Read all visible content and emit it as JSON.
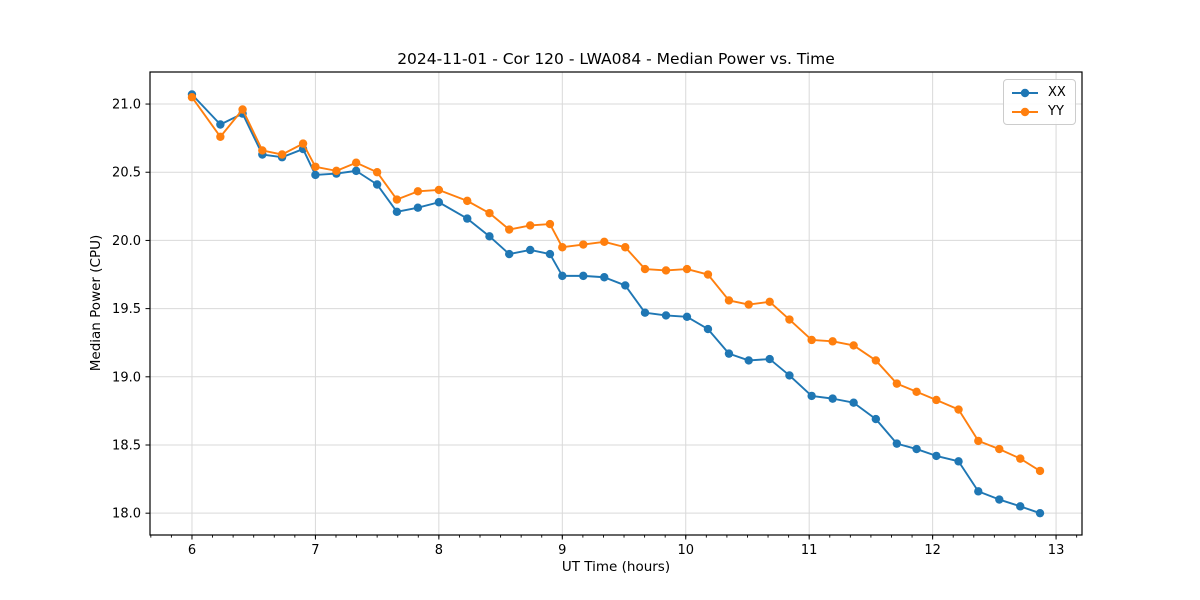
{
  "chart_data": {
    "type": "line",
    "title": "2024-11-01 - Cor 120 - LWA084 - Median Power vs. Time",
    "xlabel": "UT Time (hours)",
    "ylabel": "Median Power (CPU)",
    "xlim": [
      5.66,
      13.21
    ],
    "ylim": [
      17.84,
      21.235
    ],
    "xticks": [
      6,
      7,
      8,
      9,
      10,
      11,
      12,
      13
    ],
    "xtick_labels": [
      "6",
      "7",
      "8",
      "9",
      "10",
      "11",
      "12",
      "13"
    ],
    "yticks": [
      18.0,
      18.5,
      19.0,
      19.5,
      20.0,
      20.5,
      21.0
    ],
    "ytick_labels": [
      "18.0",
      "18.5",
      "19.0",
      "19.5",
      "20.0",
      "20.5",
      "21.0"
    ],
    "x_minor_step": 0.166667,
    "grid": true,
    "grid_color": "#d9d9d9",
    "legend_position": "upper right",
    "x": [
      6.0,
      6.23,
      6.41,
      6.57,
      6.73,
      6.9,
      7.0,
      7.17,
      7.33,
      7.5,
      7.66,
      7.83,
      8.0,
      8.23,
      8.41,
      8.57,
      8.74,
      8.9,
      9.0,
      9.17,
      9.34,
      9.51,
      9.67,
      9.84,
      10.01,
      10.18,
      10.35,
      10.51,
      10.68,
      10.84,
      11.02,
      11.19,
      11.36,
      11.54,
      11.71,
      11.87,
      12.03,
      12.21,
      12.37,
      12.54,
      12.71,
      12.87
    ],
    "series": [
      {
        "name": "XX",
        "color": "#1f77b4",
        "values": [
          21.07,
          20.85,
          20.93,
          20.63,
          20.61,
          20.67,
          20.48,
          20.49,
          20.51,
          20.41,
          20.21,
          20.24,
          20.28,
          20.16,
          20.03,
          19.9,
          19.93,
          19.9,
          19.74,
          19.74,
          19.73,
          19.67,
          19.47,
          19.45,
          19.44,
          19.35,
          19.17,
          19.12,
          19.13,
          19.01,
          18.86,
          18.84,
          18.81,
          18.69,
          18.51,
          18.47,
          18.42,
          18.38,
          18.16,
          18.1,
          18.05,
          18.0
        ]
      },
      {
        "name": "YY",
        "color": "#ff7f0e",
        "values": [
          21.05,
          20.76,
          20.96,
          20.66,
          20.63,
          20.71,
          20.54,
          20.51,
          20.57,
          20.5,
          20.3,
          20.36,
          20.37,
          20.29,
          20.2,
          20.08,
          20.11,
          20.12,
          19.95,
          19.97,
          19.99,
          19.95,
          19.79,
          19.78,
          19.79,
          19.75,
          19.56,
          19.53,
          19.55,
          19.42,
          19.27,
          19.26,
          19.23,
          19.12,
          18.95,
          18.89,
          18.83,
          18.76,
          18.53,
          18.47,
          18.4,
          18.31
        ]
      }
    ]
  }
}
